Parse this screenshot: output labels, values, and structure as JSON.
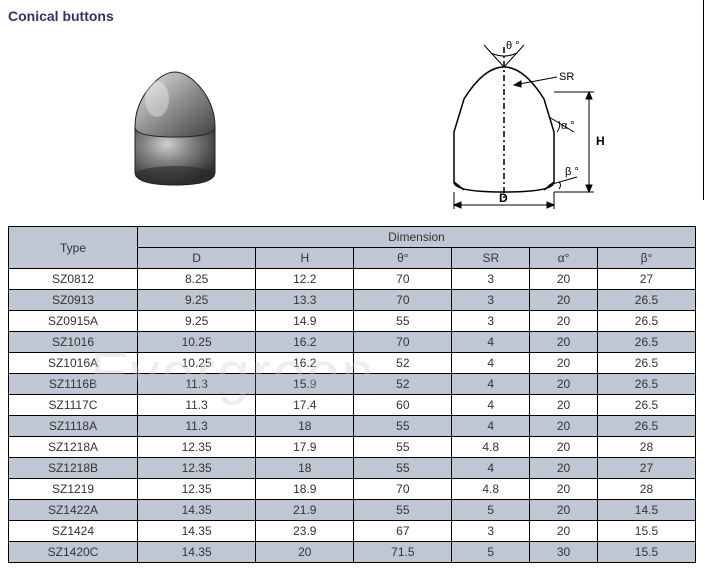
{
  "title": "Conical buttons",
  "watermark": "Evergreen",
  "diagram_labels": {
    "theta": "θ °",
    "sr": "SR",
    "h": "H",
    "alpha": "α °",
    "beta": "β °",
    "d": "D"
  },
  "table": {
    "header_top": {
      "type": "Type",
      "dimension": "Dimension"
    },
    "columns": [
      "D",
      "H",
      "θ°",
      "SR",
      "α°",
      "β°"
    ],
    "rows": [
      {
        "type": "SZ0812",
        "d": "8.25",
        "h": "12.2",
        "theta": "70",
        "sr": "3",
        "alpha": "20",
        "beta": "27"
      },
      {
        "type": "SZ0913",
        "d": "9.25",
        "h": "13.3",
        "theta": "70",
        "sr": "3",
        "alpha": "20",
        "beta": "26.5"
      },
      {
        "type": "SZ0915A",
        "d": "9.25",
        "h": "14.9",
        "theta": "55",
        "sr": "3",
        "alpha": "20",
        "beta": "26.5"
      },
      {
        "type": "SZ1016",
        "d": "10.25",
        "h": "16.2",
        "theta": "70",
        "sr": "4",
        "alpha": "20",
        "beta": "26.5"
      },
      {
        "type": "SZ1016A",
        "d": "10.25",
        "h": "16.2",
        "theta": "52",
        "sr": "4",
        "alpha": "20",
        "beta": "26.5"
      },
      {
        "type": "SZ1116B",
        "d": "11.3",
        "h": "15.9",
        "theta": "52",
        "sr": "4",
        "alpha": "20",
        "beta": "26.5"
      },
      {
        "type": "SZ1117C",
        "d": "11.3",
        "h": "17.4",
        "theta": "60",
        "sr": "4",
        "alpha": "20",
        "beta": "26.5"
      },
      {
        "type": "SZ1118A",
        "d": "11.3",
        "h": "18",
        "theta": "55",
        "sr": "4",
        "alpha": "20",
        "beta": "26.5"
      },
      {
        "type": "SZ1218A",
        "d": "12.35",
        "h": "17.9",
        "theta": "55",
        "sr": "4.8",
        "alpha": "20",
        "beta": "28"
      },
      {
        "type": "SZ1218B",
        "d": "12.35",
        "h": "18",
        "theta": "55",
        "sr": "4",
        "alpha": "20",
        "beta": "27"
      },
      {
        "type": "SZ1219",
        "d": "12.35",
        "h": "18.9",
        "theta": "70",
        "sr": "4.8",
        "alpha": "20",
        "beta": "28"
      },
      {
        "type": "SZ1422A",
        "d": "14.35",
        "h": "21.9",
        "theta": "55",
        "sr": "5",
        "alpha": "20",
        "beta": "14.5"
      },
      {
        "type": "SZ1424",
        "d": "14.35",
        "h": "23.9",
        "theta": "67",
        "sr": "3",
        "alpha": "20",
        "beta": "15.5"
      },
      {
        "type": "SZ1420C",
        "d": "14.35",
        "h": "20",
        "theta": "71.5",
        "sr": "5",
        "alpha": "30",
        "beta": "15.5"
      }
    ]
  },
  "colors": {
    "header_bg": "#bfc7d5",
    "row_even_bg": "#bfc7d5",
    "row_odd_bg": "#ffffff",
    "border": "#000000",
    "title_color": "#333366",
    "text": "#333333",
    "watermark_color": "#cccccc"
  }
}
